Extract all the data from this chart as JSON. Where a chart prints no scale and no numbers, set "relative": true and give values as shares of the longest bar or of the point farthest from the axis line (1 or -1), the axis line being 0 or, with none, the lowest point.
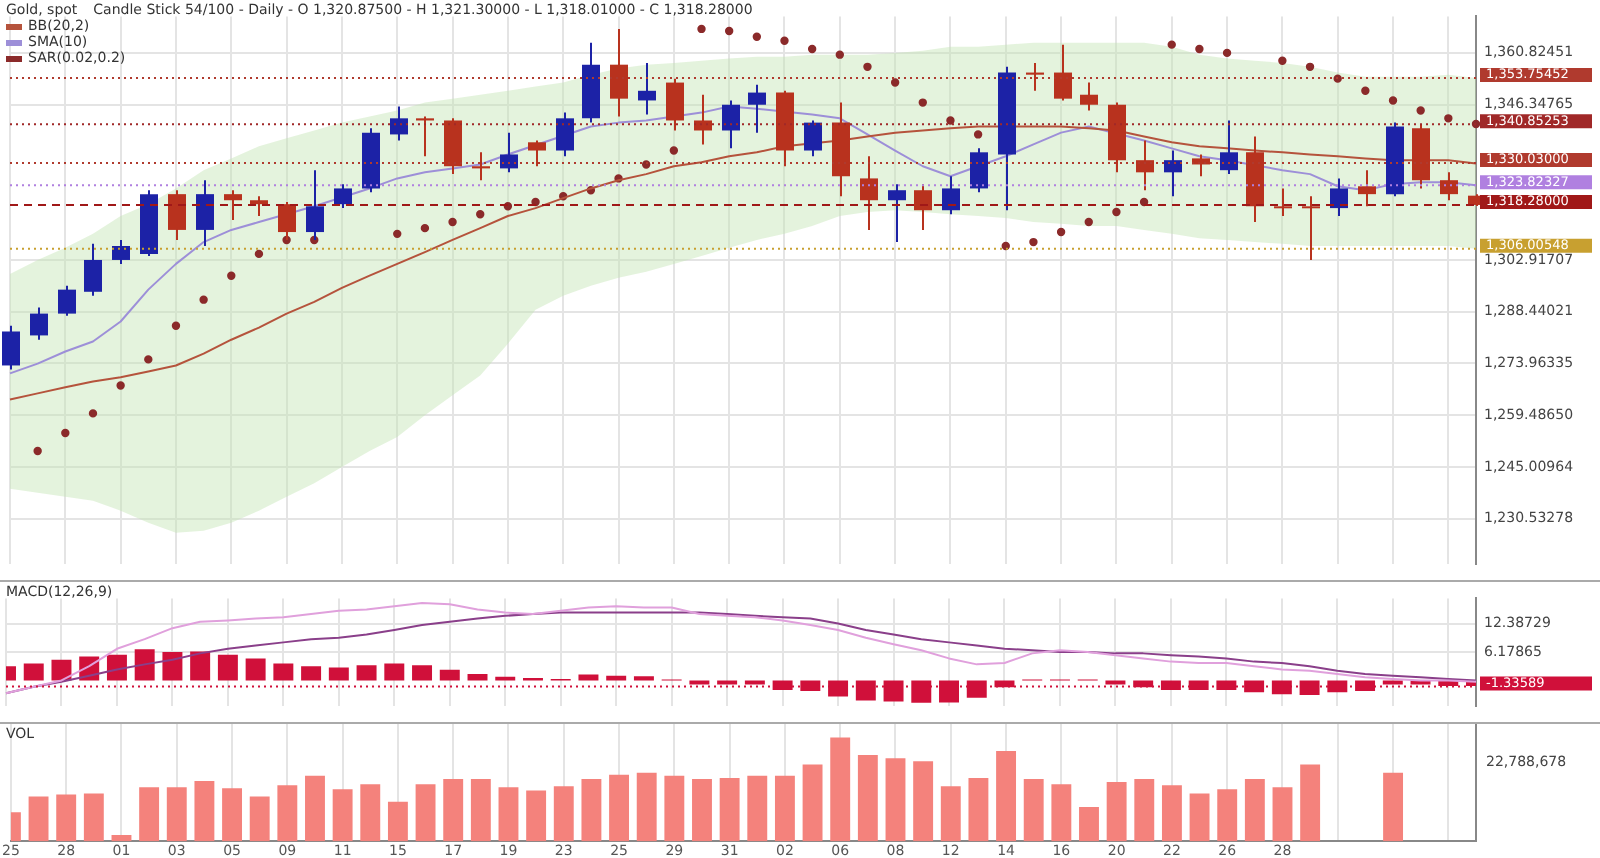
{
  "chart_data": [
    {
      "type": "candlestick",
      "title": "Gold, spot",
      "subtitle": "Candle Stick 54/100 - Daily - O 1,320.87500 - H 1,321.30000 - L 1,318.01000 - C 1,318.28000",
      "categories": [
        "25",
        null,
        "28",
        null,
        "01",
        null,
        "03",
        null,
        "05",
        null,
        "09",
        null,
        "11",
        null,
        "15",
        null,
        "17",
        null,
        "19",
        null,
        "23",
        null,
        "25",
        null,
        "29",
        null,
        "31",
        null,
        "02",
        null,
        "06",
        null,
        "08",
        null,
        "12",
        null,
        "14",
        null,
        "16",
        null,
        "20",
        null,
        "22",
        null,
        "26",
        null,
        "28",
        null,
        null,
        null,
        null,
        null,
        null,
        null
      ],
      "ohlc": [
        [
          1273.4,
          1284.5,
          1272.3,
          1282.9
        ],
        [
          1281.8,
          1289.6,
          1280.6,
          1287.9
        ],
        [
          1287.9,
          1295.7,
          1287.3,
          1294.6
        ],
        [
          1294.0,
          1307.4,
          1292.9,
          1302.9
        ],
        [
          1302.9,
          1308.5,
          1301.8,
          1306.8
        ],
        [
          1304.6,
          1322.4,
          1304.0,
          1321.3
        ],
        [
          1321.3,
          1322.4,
          1308.5,
          1311.3
        ],
        [
          1311.3,
          1325.2,
          1306.8,
          1321.3
        ],
        [
          1321.3,
          1322.4,
          1314.1,
          1319.6
        ],
        [
          1319.6,
          1320.7,
          1315.2,
          1318.5
        ],
        [
          1318.5,
          1319.1,
          1308.5,
          1310.7
        ],
        [
          1310.7,
          1328.0,
          1308.5,
          1317.9
        ],
        [
          1318.5,
          1324.1,
          1317.4,
          1322.9
        ],
        [
          1322.9,
          1339.7,
          1321.8,
          1338.5
        ],
        [
          1338.0,
          1345.8,
          1336.3,
          1342.5
        ],
        [
          1342.5,
          1343.0,
          1331.9,
          1341.9
        ],
        [
          1341.9,
          1342.5,
          1326.9,
          1329.1
        ],
        [
          1329.1,
          1333.0,
          1325.2,
          1328.5
        ],
        [
          1328.5,
          1338.5,
          1327.4,
          1332.4
        ],
        [
          1335.8,
          1336.3,
          1329.1,
          1333.5
        ],
        [
          1333.5,
          1344.1,
          1331.9,
          1342.5
        ],
        [
          1342.5,
          1363.6,
          1341.3,
          1357.5
        ],
        [
          1357.5,
          1367.5,
          1343.0,
          1348.0
        ],
        [
          1347.5,
          1358.0,
          1343.6,
          1350.2
        ],
        [
          1352.5,
          1353.6,
          1339.1,
          1341.9
        ],
        [
          1341.9,
          1349.1,
          1335.2,
          1339.1
        ],
        [
          1339.1,
          1347.5,
          1334.1,
          1346.3
        ],
        [
          1346.3,
          1351.9,
          1338.5,
          1349.7
        ],
        [
          1349.7,
          1350.2,
          1329.1,
          1333.5
        ],
        [
          1333.5,
          1341.9,
          1331.9,
          1341.3
        ],
        [
          1341.3,
          1346.9,
          1320.7,
          1326.3
        ],
        [
          1325.7,
          1331.9,
          1311.3,
          1319.6
        ],
        [
          1319.6,
          1324.1,
          1307.9,
          1322.4
        ],
        [
          1322.4,
          1324.1,
          1311.3,
          1316.8
        ],
        [
          1316.8,
          1326.3,
          1315.7,
          1322.9
        ],
        [
          1322.9,
          1334.1,
          1321.8,
          1333.0
        ],
        [
          1332.4,
          1356.9,
          1316.8,
          1355.3
        ],
        [
          1355.3,
          1358.0,
          1350.2,
          1354.7
        ],
        [
          1355.3,
          1363.1,
          1347.5,
          1348.0
        ],
        [
          1349.1,
          1352.5,
          1344.7,
          1346.3
        ],
        [
          1346.3,
          1346.9,
          1327.4,
          1330.8
        ],
        [
          1330.8,
          1336.3,
          1322.4,
          1327.4
        ],
        [
          1327.4,
          1333.5,
          1320.7,
          1330.8
        ],
        [
          1331.3,
          1332.4,
          1326.3,
          1329.6
        ],
        [
          1328.0,
          1341.9,
          1326.9,
          1333.0
        ],
        [
          1333.0,
          1337.4,
          1313.5,
          1317.9
        ],
        [
          1317.9,
          1322.9,
          1315.2,
          1317.4
        ],
        [
          1317.9,
          1320.7,
          1302.9,
          1317.4
        ],
        [
          1317.4,
          1325.7,
          1315.2,
          1322.9
        ],
        [
          1323.5,
          1328.0,
          1317.9,
          1321.3
        ],
        [
          1321.3,
          1341.3,
          1320.7,
          1340.2
        ],
        [
          1339.7,
          1340.8,
          1322.9,
          1325.2
        ],
        [
          1325.2,
          1327.4,
          1319.6,
          1321.3
        ],
        [
          1320.875,
          1321.3,
          1318.01,
          1318.28
        ]
      ],
      "colors": [
        "#1c22a6",
        "#1c22a6",
        "#1c22a6",
        "#1c22a6",
        "#1c22a6",
        "#1c22a6",
        "#b8321e",
        "#1c22a6",
        "#b8321e",
        "#b8321e",
        "#b8321e",
        "#1c22a6",
        "#1c22a6",
        "#1c22a6",
        "#1c22a6",
        "#b8321e",
        "#b8321e",
        "#b8321e",
        "#1c22a6",
        "#b8321e",
        "#1c22a6",
        "#1c22a6",
        "#b8321e",
        "#1c22a6",
        "#b8321e",
        "#b8321e",
        "#1c22a6",
        "#1c22a6",
        "#b8321e",
        "#1c22a6",
        "#b8321e",
        "#b8321e",
        "#1c22a6",
        "#b8321e",
        "#1c22a6",
        "#1c22a6",
        "#1c22a6",
        "#b8321e",
        "#b8321e",
        "#b8321e",
        "#b8321e",
        "#b8321e",
        "#1c22a6",
        "#b8321e",
        "#1c22a6",
        "#b8321e",
        "#b8321e",
        "#b8321e",
        "#1c22a6",
        "#b8321e",
        "#1c22a6",
        "#b8321e",
        "#b8321e",
        "#b8321e"
      ],
      "series": [
        {
          "name": "BB(20,2)",
          "type": "line",
          "color": "#b5533c",
          "values": [
            1263.9,
            1265.6,
            1267.3,
            1268.9,
            1270.1,
            1271.7,
            1273.4,
            1276.7,
            1280.6,
            1284.0,
            1287.9,
            1291.2,
            1295.1,
            1298.5,
            1301.8,
            1305.1,
            1308.5,
            1311.8,
            1315.2,
            1317.4,
            1320.2,
            1322.9,
            1325.2,
            1326.9,
            1329.1,
            1330.2,
            1331.9,
            1333.0,
            1334.7,
            null,
            1336.3,
            1337.4,
            1338.5,
            1339.1,
            1339.7,
            1340.2,
            1340.2,
            1340.2,
            1340.2,
            1339.7,
            1339.1,
            1337.4,
            1335.8,
            1334.7,
            1334.1,
            1333.5,
            1333.0,
            1332.4,
            1331.9,
            1331.3,
            1330.8,
            1330.8,
            1330.8,
            1329.9
          ],
          "upper": [
            1299.0,
            1302.9,
            1306.3,
            1310.2,
            1315.2,
            1318.5,
            1322.9,
            1328.0,
            1331.3,
            1334.7,
            1336.9,
            1339.1,
            1341.3,
            1343.0,
            1344.7,
            1346.9,
            1348.0,
            1349.1,
            1350.2,
            1351.4,
            1352.5,
            1354.7,
            1356.4,
            1357.5,
            1358.0,
            1358.6,
            1359.2,
            1359.7,
            1359.7,
            1360.3,
            1360.3,
            1360.3,
            1360.8,
            1361.4,
            1362.5,
            1362.5,
            1363.1,
            1363.6,
            1363.6,
            1363.6,
            1363.6,
            1363.6,
            1362.5,
            1360.3,
            1359.2,
            1358.6,
            1358.0,
            1356.9,
            1355.3,
            1354.1,
            1354.1,
            1354.1,
            1354.7,
            1353.8
          ],
          "lower": [
            1238.9,
            1237.8,
            1236.7,
            1235.6,
            1232.8,
            1229.4,
            1226.6,
            1227.2,
            1229.4,
            1232.8,
            1236.7,
            1240.5,
            1245.0,
            1249.5,
            1253.4,
            1259.5,
            1265.1,
            1270.6,
            1279.5,
            1289.0,
            1292.9,
            1295.7,
            1297.9,
            1299.6,
            1301.8,
            1304.0,
            1306.3,
            1308.5,
            1310.2,
            1312.4,
            1315.2,
            1316.3,
            1316.8,
            1316.3,
            1315.7,
            1315.2,
            1314.6,
            1313.5,
            1313.0,
            1312.4,
            1312.4,
            1311.3,
            1310.2,
            1309.0,
            1308.5,
            1307.9,
            1307.4,
            1306.8,
            1306.8,
            1306.8,
            1306.8,
            1306.8,
            1306.8,
            1306.0
          ]
        },
        {
          "name": "SMA(10)",
          "type": "line",
          "color": "#9d8fd8",
          "values": [
            1271.2,
            1273.9,
            1277.3,
            1280.1,
            1285.7,
            1294.6,
            1301.8,
            1307.9,
            1311.3,
            1313.5,
            null,
            1317.9,
            null,
            1322.9,
            1325.7,
            1327.4,
            1328.5,
            1329.6,
            1332.4,
            null,
            null,
            1340.2,
            1341.3,
            1341.9,
            null,
            1344.1,
            1345.8,
            1345.2,
            null,
            1343.6,
            1342.5,
            1338.0,
            1333.5,
            1329.1,
            1326.3,
            null,
            1331.9,
            1335.2,
            1338.5,
            1340.2,
            null,
            1336.3,
            1334.1,
            1331.9,
            1330.8,
            null,
            1328.0,
            1326.9,
            1323.5,
            1322.4,
            1324.1,
            1324.6,
            1324.6,
            1323.8
          ]
        },
        {
          "name": "SAR(0.02,0.2)",
          "type": "scatter",
          "marker": "circle",
          "color": "#8b2a2a",
          "values": [
            null,
            1249.5,
            1254.5,
            1260.0,
            1267.8,
            1275.1,
            1284.5,
            1291.8,
            1298.5,
            1304.6,
            1308.5,
            1308.5,
            null,
            null,
            1310.2,
            1311.8,
            1313.5,
            1315.7,
            1317.9,
            1319.1,
            1320.7,
            1322.4,
            1325.7,
            1329.6,
            1333.5,
            1367.5,
            1366.9,
            1365.3,
            1364.2,
            1361.9,
            1360.3,
            1356.9,
            1352.5,
            1346.9,
            1341.9,
            1338.0,
            1306.8,
            1307.9,
            1310.7,
            1313.5,
            1316.3,
            1319.1,
            1363.1,
            1361.9,
            1360.8,
            null,
            1358.6,
            1356.9,
            1353.6,
            1350.2,
            1347.5,
            1344.7,
            1342.5,
            1340.9
          ]
        }
      ],
      "ylim": [
        1218,
        1371
      ],
      "yticks": [
        {
          "value": 1230.53278,
          "label": "1,230.53278"
        },
        {
          "value": 1245.00964,
          "label": "1,245.00964"
        },
        {
          "value": 1259.4865,
          "label": "1,259.48650"
        },
        {
          "value": 1273.96335,
          "label": "1,273.96335"
        },
        {
          "value": 1288.44021,
          "label": "1,288.44021"
        },
        {
          "value": 1302.91707,
          "label": "1,302.91707"
        },
        {
          "value": 1346.34765,
          "label": "1,346.34765"
        },
        {
          "value": 1360.82451,
          "label": "1,360.82451"
        }
      ],
      "ref_lines": [
        {
          "axis": "y",
          "value": 1353.75452,
          "label": "1,353.75452",
          "color": "#b03a2e",
          "line_style": "dotted"
        },
        {
          "axis": "y",
          "value": 1340.85253,
          "label": "1,340.85253",
          "color": "#a02828",
          "line_style": "dotted"
        },
        {
          "axis": "y",
          "value": 1330.03,
          "label": "1,330.03000",
          "color": "#b03a2e",
          "line_style": "dotted"
        },
        {
          "axis": "y",
          "value": 1323.82327,
          "label": "1,323.82327",
          "color": "#b080e0",
          "line_style": "dotted"
        },
        {
          "axis": "y",
          "value": 1318.28,
          "label": "1,318.28000",
          "color": "#a01818",
          "line_style": "dashed"
        },
        {
          "axis": "y",
          "value": 1306.00548,
          "label": "1,306.00548",
          "color": "#c8a030",
          "line_style": "dotted"
        }
      ],
      "grid": true,
      "legend": "top left",
      "tick_labels": "y"
    },
    {
      "type": "bar",
      "title": "MACD(12,26,9)",
      "categories": [
        "25",
        null,
        "28",
        null,
        "01",
        null,
        "03",
        null,
        "05",
        null,
        "09",
        null,
        "11",
        null,
        "15",
        null,
        "17",
        null,
        "19",
        null,
        "23",
        null,
        "25",
        null,
        "29",
        null,
        "31",
        null,
        "02",
        null,
        "06",
        null,
        "08",
        null,
        "12",
        null,
        "14",
        null,
        "16",
        null,
        "20",
        null,
        "22",
        null,
        "26",
        null,
        "28",
        null,
        null,
        null,
        null,
        null,
        null,
        null
      ],
      "series": [
        {
          "type": "bar",
          "color": "#d0103a",
          "values": [
            3.1,
            3.7,
            4.5,
            5.2,
            5.6,
            6.8,
            6.2,
            6.3,
            5.6,
            4.8,
            3.7,
            3.1,
            2.8,
            3.3,
            3.7,
            3.3,
            2.3,
            1.4,
            0.8,
            0.5,
            0.3,
            1.3,
            1.0,
            0.9,
            0.2,
            -0.9,
            -0.9,
            -0.9,
            -2.1,
            -2.3,
            -3.5,
            -4.4,
            -4.6,
            -4.9,
            -4.8,
            -3.8,
            -1.5,
            0.2,
            0.2,
            0.2,
            -0.9,
            -1.5,
            -2.1,
            -2.1,
            -2.1,
            -2.6,
            -3.0,
            -3.2,
            -2.6,
            -2.3,
            -0.9,
            -0.9,
            -1.2,
            -1.2
          ]
        },
        {
          "type": "line",
          "color": "#e0a0dc",
          "values": [
            -2.8,
            -1.4,
            0,
            3.1,
            6.9,
            9.0,
            11.4,
            12.8,
            13.1,
            13.5,
            13.8,
            14.5,
            15.2,
            15.5,
            16.2,
            16.9,
            16.6,
            15.5,
            14.8,
            14.5,
            15.2,
            15.9,
            16.2,
            15.9,
            15.9,
            14.5,
            14.1,
            13.8,
            13.1,
            12.1,
            11.0,
            9.3,
            7.9,
            6.6,
            4.8,
            3.5,
            3.8,
            5.9,
            6.6,
            6.2,
            5.5,
            4.8,
            4.1,
            3.8,
            3.8,
            3.1,
            2.4,
            2.1,
            1.4,
            0.7,
            0.3,
            0,
            0,
            -0.3
          ]
        },
        {
          "type": "line",
          "color": "#8a3f8a",
          "values": [
            -2.8,
            -1.4,
            -0.3,
            1.0,
            2.4,
            3.5,
            4.5,
            5.9,
            6.9,
            7.6,
            8.3,
            9.0,
            9.3,
            10.0,
            11.0,
            12.1,
            12.8,
            13.5,
            14.1,
            14.5,
            14.8,
            14.8,
            14.8,
            14.8,
            14.8,
            14.8,
            14.5,
            14.1,
            13.8,
            13.5,
            12.4,
            11.0,
            10.0,
            9.0,
            8.3,
            7.6,
            6.9,
            6.6,
            6.2,
            6.2,
            5.9,
            5.9,
            5.5,
            5.2,
            4.8,
            4.1,
            3.8,
            3.1,
            2.1,
            1.4,
            1.0,
            0.7,
            0.3,
            0
          ]
        }
      ],
      "ylim": [
        -5.5,
        17.9
      ],
      "yticks": [
        6.17865,
        12.38729
      ],
      "ref_lines": [
        {
          "axis": "y",
          "value": -1.33589,
          "label": "-1.33589",
          "color": "#d0103a",
          "line_style": "dotted"
        }
      ],
      "grid": true,
      "tick_labels": "y"
    },
    {
      "type": "bar",
      "title": "VOL",
      "relative": true,
      "color": "#f4827c",
      "categories": [
        "25",
        null,
        "28",
        null,
        "01",
        null,
        "03",
        null,
        "05",
        null,
        "09",
        null,
        "11",
        null,
        "15",
        null,
        "17",
        null,
        "19",
        null,
        "23",
        null,
        "25",
        null,
        "29",
        null,
        "31",
        null,
        "02",
        null,
        "06",
        null,
        "08",
        null,
        "12",
        null,
        "14",
        null,
        "16",
        null,
        "20",
        null,
        "22",
        null,
        "26",
        null,
        "28",
        null,
        null,
        null,
        null,
        null,
        null,
        null
      ],
      "values": [
        0.28,
        0.43,
        0.45,
        0.46,
        0.06,
        0.52,
        0.52,
        0.58,
        0.51,
        0.43,
        0.54,
        0.63,
        0.5,
        0.55,
        0.38,
        0.55,
        0.6,
        0.6,
        0.52,
        0.49,
        0.53,
        0.6,
        0.64,
        0.66,
        0.63,
        0.6,
        0.61,
        0.63,
        0.63,
        0.74,
        1,
        0.83,
        0.8,
        0.77,
        0.53,
        0.61,
        0.87,
        0.6,
        0.55,
        0.33,
        0.57,
        0.6,
        0.54,
        0.46,
        0.5,
        0.6,
        0.52,
        0.74,
        null,
        null,
        0.66,
        null,
        null,
        null
      ],
      "annotations": [
        "22,788,678"
      ],
      "grid": "x",
      "tick_labels": "x"
    }
  ]
}
